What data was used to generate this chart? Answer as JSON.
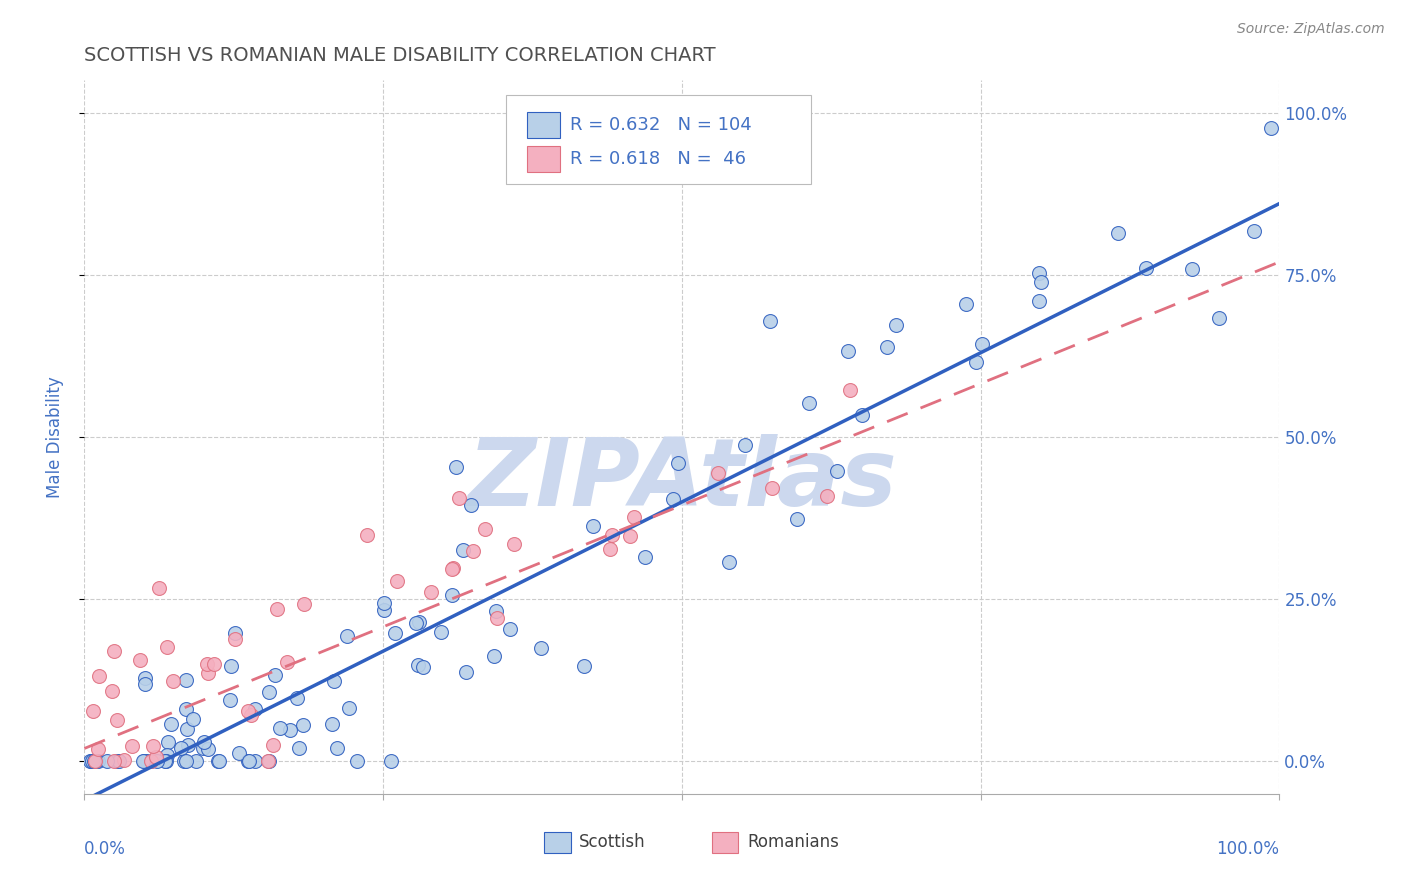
{
  "title": "SCOTTISH VS ROMANIAN MALE DISABILITY CORRELATION CHART",
  "source": "Source: ZipAtlas.com",
  "ylabel": "Male Disability",
  "xlim": [
    0,
    1
  ],
  "ylim": [
    -0.05,
    1.05
  ],
  "ytick_positions": [
    0,
    0.25,
    0.5,
    0.75,
    1.0
  ],
  "scottish_R": 0.632,
  "scottish_N": 104,
  "romanian_R": 0.618,
  "romanian_N": 46,
  "scottish_color": "#b8d0e8",
  "romanian_color": "#f4b0c0",
  "blue_line_color": "#3060c0",
  "pink_line_color": "#e07080",
  "title_color": "#505050",
  "axis_label_color": "#4472c4",
  "watermark_color": "#ccd8ee",
  "background_color": "#ffffff",
  "grid_color": "#cccccc",
  "scottish_line_x": [
    0,
    1.0
  ],
  "scottish_line_y": [
    -0.06,
    0.86
  ],
  "romanian_line_x": [
    0,
    1.0
  ],
  "romanian_line_y": [
    0.02,
    0.77
  ]
}
